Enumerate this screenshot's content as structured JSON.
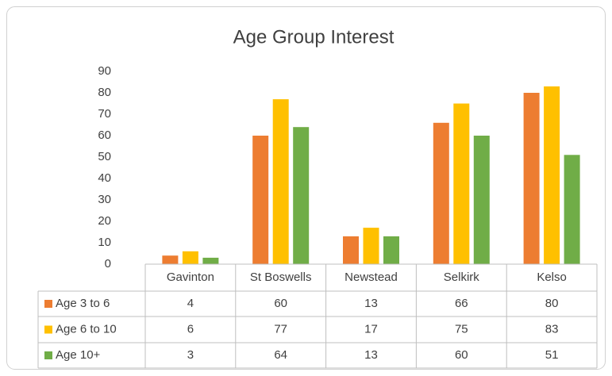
{
  "chart_data": {
    "type": "bar",
    "title": "Age Group Interest",
    "categories": [
      "Gavinton",
      "St Boswells",
      "Newstead",
      "Selkirk",
      "Kelso"
    ],
    "series": [
      {
        "name": "Age 3 to 6",
        "color": "#ed7d31",
        "values": [
          4,
          60,
          13,
          66,
          80
        ]
      },
      {
        "name": "Age 6 to 10",
        "color": "#ffc000",
        "values": [
          6,
          77,
          17,
          75,
          83
        ]
      },
      {
        "name": "Age 10+",
        "color": "#70ad47",
        "values": [
          3,
          64,
          13,
          60,
          51
        ]
      }
    ],
    "ylim": [
      0,
      90
    ],
    "yticks": [
      0,
      10,
      20,
      30,
      40,
      50,
      60,
      70,
      80,
      90
    ],
    "grid": false
  }
}
